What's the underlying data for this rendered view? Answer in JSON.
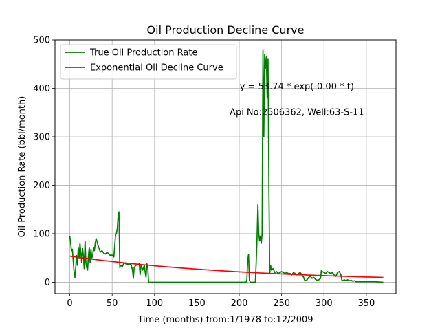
{
  "chart_data": {
    "type": "line",
    "title": "Oil Production Decline Curve",
    "xlabel": "Time (months) from:1/1978 to:12/2009",
    "ylabel": "Oil Production Rate (bbl/month)",
    "xlim": [
      -17.5,
      385
    ],
    "ylim": [
      -23.5,
      500
    ],
    "xticks": [
      0,
      50,
      100,
      150,
      200,
      250,
      300,
      350
    ],
    "yticks": [
      0,
      100,
      200,
      300,
      400,
      500
    ],
    "grid": true,
    "legend_position": "top-left",
    "annotations": [
      {
        "text": "y = 53.74 * exp(-0.00 * t)",
        "x": 268,
        "y": 398
      },
      {
        "text": "Api No:2506362, Well:63-S-11",
        "x": 268,
        "y": 345
      }
    ],
    "series": [
      {
        "name": "True Oil Production Rate",
        "color": "#008000",
        "points": [
          [
            0,
            95
          ],
          [
            1,
            80
          ],
          [
            2,
            65
          ],
          [
            3,
            68
          ],
          [
            4,
            45
          ],
          [
            5,
            22
          ],
          [
            6,
            10
          ],
          [
            7,
            30
          ],
          [
            8,
            55
          ],
          [
            9,
            35
          ],
          [
            10,
            72
          ],
          [
            11,
            50
          ],
          [
            12,
            80
          ],
          [
            13,
            62
          ],
          [
            14,
            40
          ],
          [
            15,
            70
          ],
          [
            16,
            55
          ],
          [
            17,
            28
          ],
          [
            18,
            85
          ],
          [
            19,
            40
          ],
          [
            20,
            30
          ],
          [
            21,
            25
          ],
          [
            22,
            55
          ],
          [
            23,
            72
          ],
          [
            24,
            40
          ],
          [
            25,
            68
          ],
          [
            26,
            50
          ],
          [
            27,
            55
          ],
          [
            28,
            72
          ],
          [
            29,
            65
          ],
          [
            30,
            80
          ],
          [
            31,
            90
          ],
          [
            32,
            85
          ],
          [
            33,
            78
          ],
          [
            34,
            72
          ],
          [
            35,
            68
          ],
          [
            36,
            62
          ],
          [
            38,
            65
          ],
          [
            40,
            60
          ],
          [
            42,
            58
          ],
          [
            44,
            62
          ],
          [
            46,
            58
          ],
          [
            48,
            55
          ],
          [
            50,
            56
          ],
          [
            52,
            52
          ],
          [
            54,
            98
          ],
          [
            55,
            100
          ],
          [
            56,
            110
          ],
          [
            57,
            135
          ],
          [
            58,
            145
          ],
          [
            59,
            30
          ],
          [
            60,
            35
          ],
          [
            62,
            32
          ],
          [
            64,
            40
          ],
          [
            66,
            38
          ],
          [
            70,
            36
          ],
          [
            72,
            38
          ],
          [
            74,
            25
          ],
          [
            75,
            8
          ],
          [
            76,
            30
          ],
          [
            78,
            35
          ],
          [
            80,
            36
          ],
          [
            82,
            38
          ],
          [
            83,
            15
          ],
          [
            84,
            35
          ],
          [
            86,
            25
          ],
          [
            88,
            35
          ],
          [
            89,
            20
          ],
          [
            90,
            10
          ],
          [
            91,
            38
          ],
          [
            92,
            33
          ],
          [
            93,
            0
          ],
          [
            100,
            0
          ],
          [
            150,
            0
          ],
          [
            200,
            0
          ],
          [
            208,
            0
          ],
          [
            209,
            5
          ],
          [
            210,
            45
          ],
          [
            211,
            57
          ],
          [
            212,
            5
          ],
          [
            213,
            0
          ],
          [
            219,
            0
          ],
          [
            220,
            40
          ],
          [
            221,
            90
          ],
          [
            222,
            160
          ],
          [
            223,
            100
          ],
          [
            224,
            85
          ],
          [
            225,
            95
          ],
          [
            226,
            80
          ],
          [
            227,
            100
          ],
          [
            228,
            480
          ],
          [
            229,
            300
          ],
          [
            230,
            470
          ],
          [
            231,
            440
          ],
          [
            232,
            465
          ],
          [
            233,
            380
          ],
          [
            234,
            460
          ],
          [
            235,
            200
          ],
          [
            236,
            20
          ],
          [
            237,
            35
          ],
          [
            238,
            25
          ],
          [
            240,
            28
          ],
          [
            242,
            20
          ],
          [
            244,
            22
          ],
          [
            246,
            18
          ],
          [
            248,
            20
          ],
          [
            250,
            22
          ],
          [
            252,
            20
          ],
          [
            254,
            18
          ],
          [
            256,
            20
          ],
          [
            258,
            18
          ],
          [
            260,
            18
          ],
          [
            262,
            15
          ],
          [
            264,
            20
          ],
          [
            266,
            18
          ],
          [
            268,
            15
          ],
          [
            270,
            18
          ],
          [
            272,
            20
          ],
          [
            274,
            15
          ],
          [
            276,
            10
          ],
          [
            277,
            5
          ],
          [
            278,
            3
          ],
          [
            280,
            5
          ],
          [
            282,
            10
          ],
          [
            284,
            12
          ],
          [
            286,
            8
          ],
          [
            288,
            10
          ],
          [
            290,
            6
          ],
          [
            292,
            4
          ],
          [
            294,
            5
          ],
          [
            296,
            8
          ],
          [
            297,
            25
          ],
          [
            298,
            22
          ],
          [
            300,
            20
          ],
          [
            302,
            18
          ],
          [
            304,
            22
          ],
          [
            306,
            20
          ],
          [
            308,
            18
          ],
          [
            310,
            20
          ],
          [
            312,
            15
          ],
          [
            314,
            12
          ],
          [
            316,
            20
          ],
          [
            318,
            22
          ],
          [
            320,
            15
          ],
          [
            321,
            5
          ],
          [
            322,
            3
          ],
          [
            324,
            5
          ],
          [
            326,
            3
          ],
          [
            328,
            5
          ],
          [
            330,
            3
          ],
          [
            332,
            4
          ],
          [
            334,
            2
          ],
          [
            336,
            3
          ],
          [
            338,
            1
          ],
          [
            340,
            1
          ],
          [
            345,
            1
          ],
          [
            350,
            1
          ],
          [
            360,
            1
          ],
          [
            370,
            0
          ]
        ]
      },
      {
        "name": "Exponential Oil Decline Curve",
        "color": "#ff0000",
        "fit": {
          "a": 53.74,
          "b": 0.0046
        },
        "x_range": [
          0,
          370
        ]
      }
    ]
  }
}
